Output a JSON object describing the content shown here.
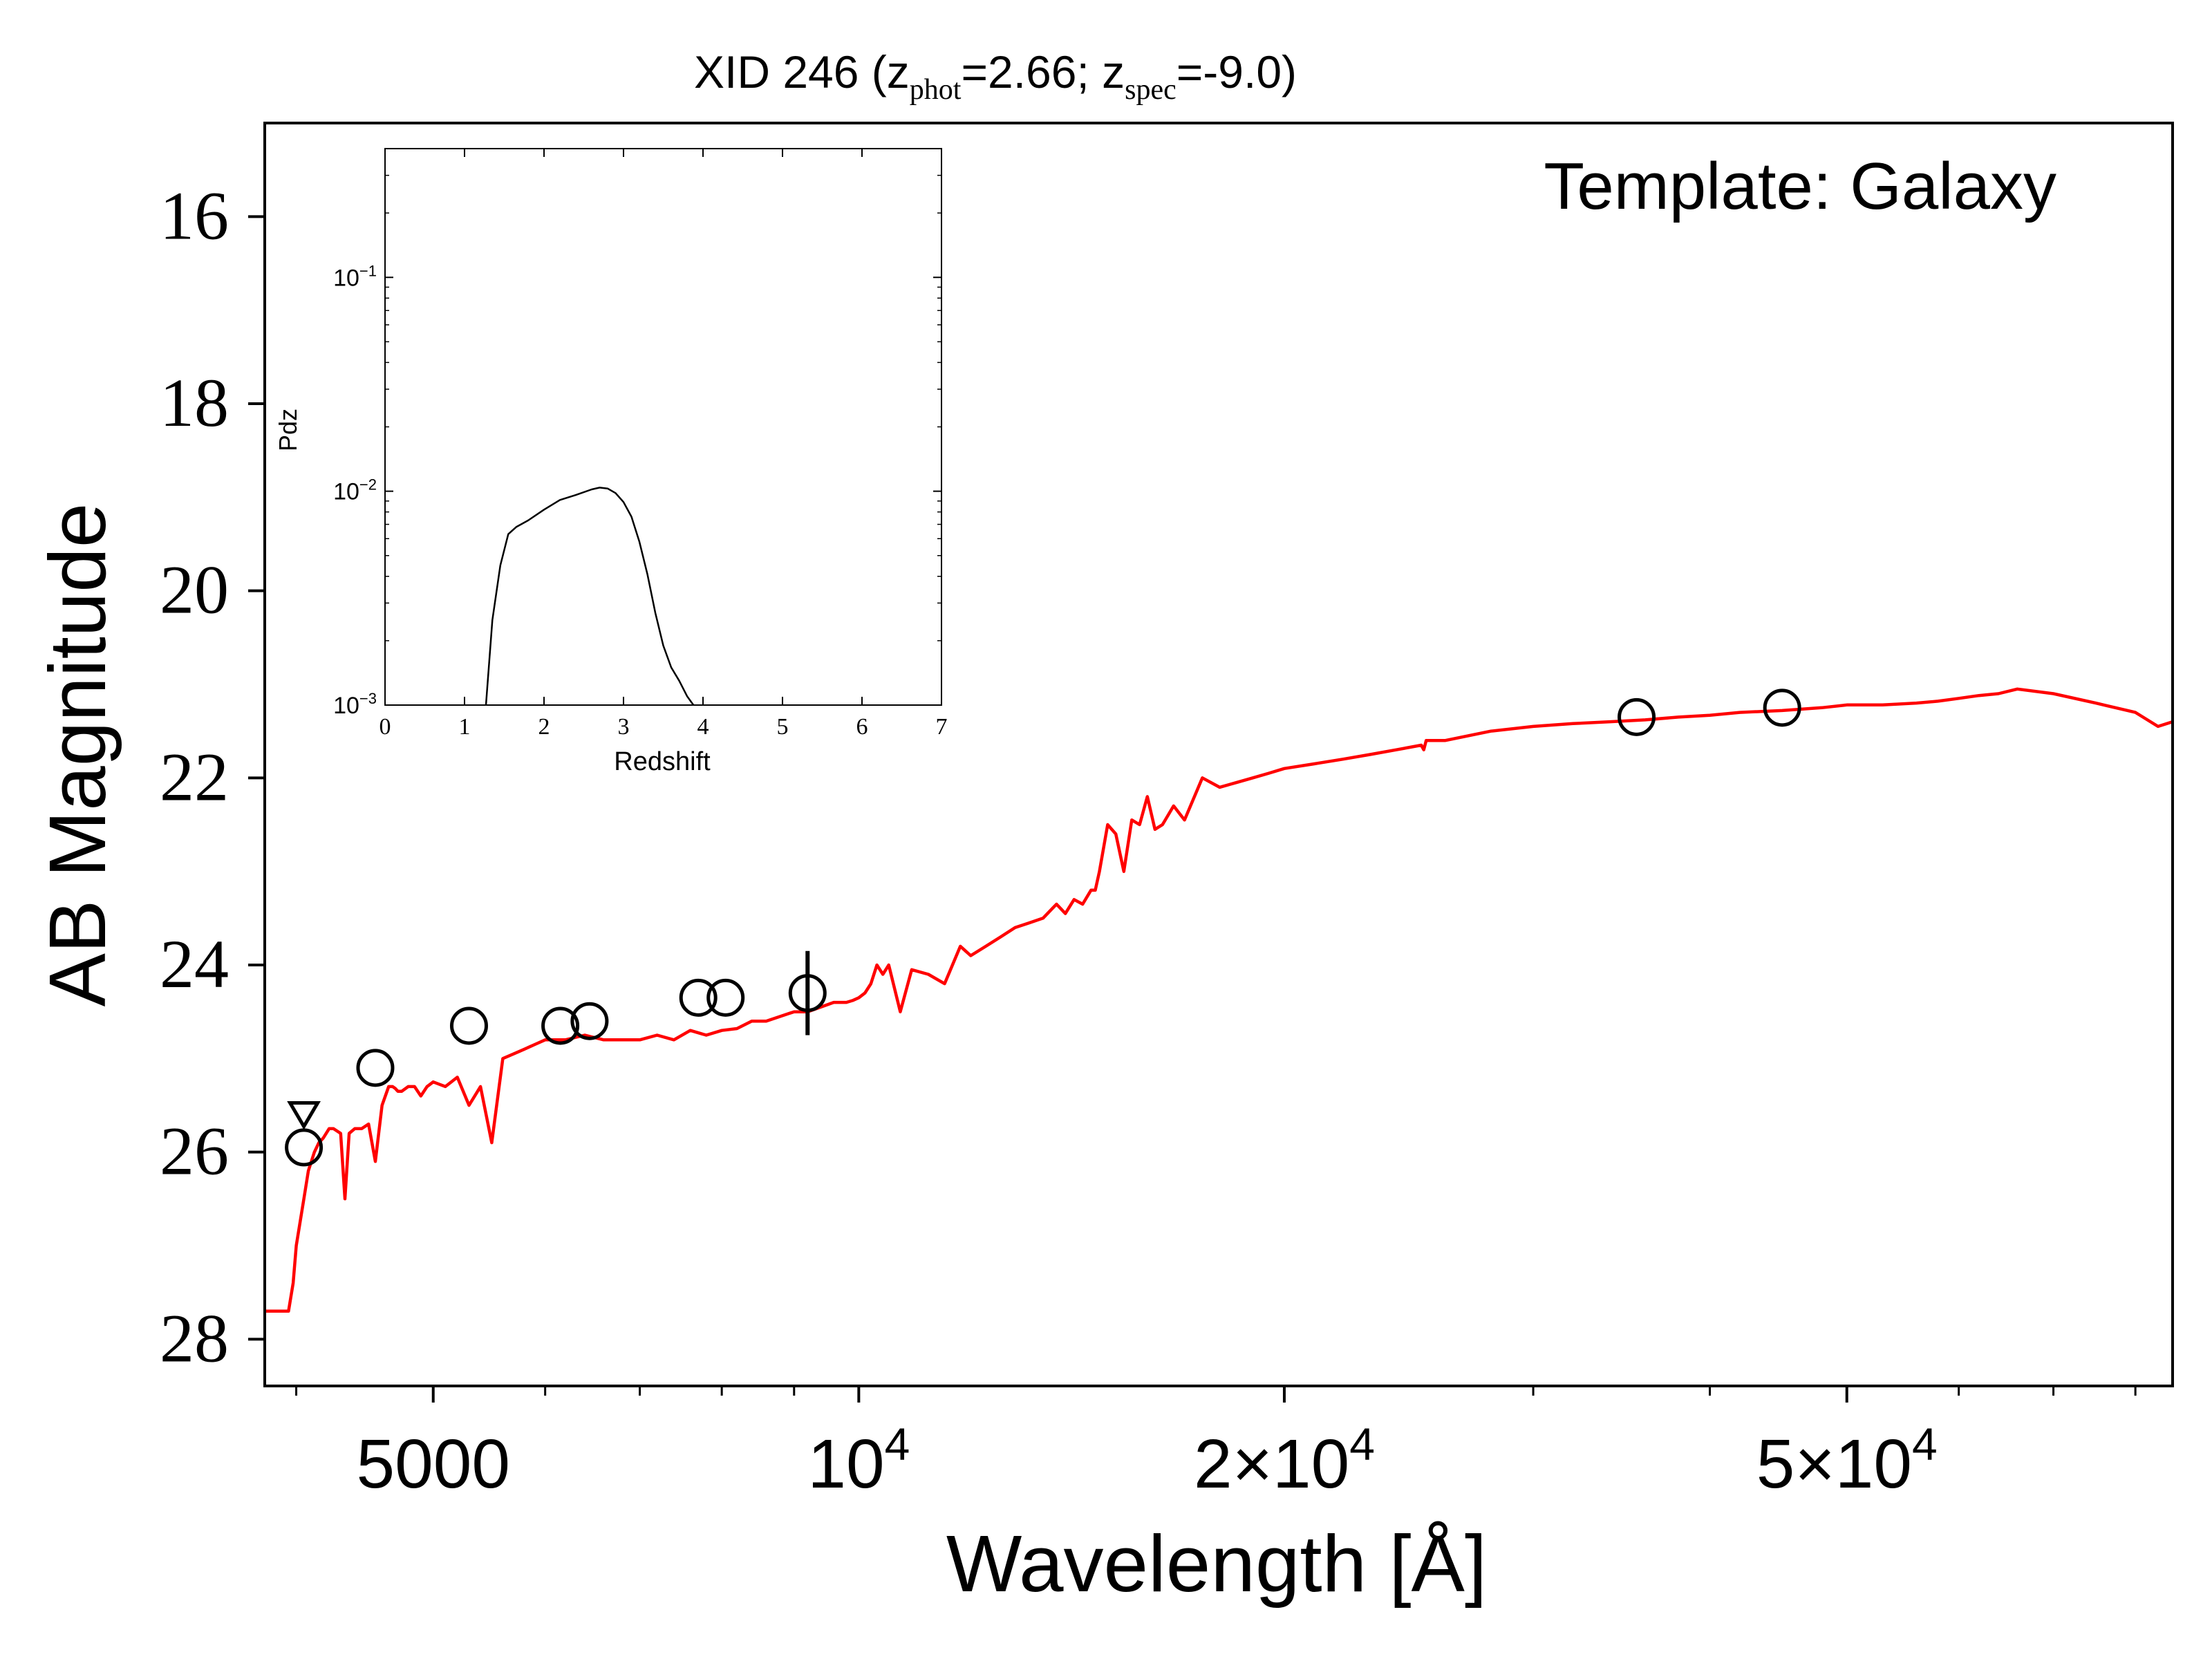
{
  "chart_data": [
    {
      "type": "line",
      "title": {
        "prefix": "XID 246 (z",
        "phot_sub": "phot",
        "phot_val": "=2.66; z",
        "spec_sub": "spec",
        "spec_val": "=-9.0)"
      },
      "annotation": "Template: Galaxy",
      "xlabel": "Wavelength [Å]",
      "ylabel": "AB Magnitude",
      "xscale": "log",
      "xlim": [
        3800,
        85000
      ],
      "ylim": [
        28.5,
        15.0
      ],
      "y_inverted": true,
      "xticks": [
        {
          "value": 5000,
          "label": "5000"
        },
        {
          "value": 10000,
          "label_base": "10",
          "label_exp": "4"
        },
        {
          "value": 20000,
          "label_base": "2×10",
          "label_exp": "4"
        },
        {
          "value": 50000,
          "label_base": "5×10",
          "label_exp": "4"
        }
      ],
      "yticks": [
        16,
        18,
        20,
        22,
        24,
        26,
        28
      ],
      "series": [
        {
          "role": "template",
          "color": "#ff0000",
          "x": [
            3800,
            3950,
            3980,
            4000,
            4020,
            4050,
            4080,
            4120,
            4150,
            4180,
            4200,
            4220,
            4250,
            4300,
            4330,
            4360,
            4400,
            4450,
            4500,
            4550,
            4600,
            4650,
            4680,
            4700,
            4720,
            4750,
            4800,
            4850,
            4900,
            4950,
            5000,
            5100,
            5200,
            5300,
            5400,
            5500,
            5600,
            5700,
            5800,
            5900,
            6000,
            6200,
            6400,
            6600,
            6800,
            7000,
            7200,
            7400,
            7600,
            7800,
            8000,
            8200,
            8400,
            8600,
            8800,
            9000,
            9200,
            9400,
            9600,
            9800,
            9900,
            10000,
            10100,
            10200,
            10300,
            10400,
            10500,
            10700,
            10900,
            11200,
            11500,
            11800,
            12000,
            12300,
            12600,
            12900,
            13200,
            13500,
            13800,
            14000,
            14200,
            14400,
            14600,
            14700,
            14800,
            15000,
            15200,
            15400,
            15600,
            15800,
            16000,
            16200,
            16400,
            16700,
            17000,
            17500,
            18000,
            18500,
            19000,
            19500,
            20000,
            21000,
            22000,
            23000,
            24000,
            25000,
            25100,
            25200,
            26000,
            28000,
            30000,
            32000,
            34000,
            36000,
            38000,
            40000,
            42000,
            45000,
            48000,
            50000,
            53000,
            56000,
            58000,
            60000,
            62000,
            64000,
            66000,
            70000,
            75000,
            80000,
            83000,
            85000
          ],
          "y": [
            27.7,
            27.7,
            27.4,
            27.0,
            26.8,
            26.5,
            26.2,
            26.0,
            25.9,
            25.85,
            25.8,
            25.75,
            25.75,
            25.8,
            26.5,
            25.8,
            25.75,
            25.75,
            25.7,
            26.1,
            25.5,
            25.3,
            25.3,
            25.32,
            25.35,
            25.35,
            25.3,
            25.3,
            25.4,
            25.3,
            25.25,
            25.3,
            25.2,
            25.5,
            25.3,
            25.9,
            25.0,
            24.95,
            24.9,
            24.85,
            24.8,
            24.8,
            24.75,
            24.8,
            24.8,
            24.8,
            24.75,
            24.8,
            24.7,
            24.75,
            24.7,
            24.68,
            24.6,
            24.6,
            24.55,
            24.5,
            24.5,
            24.45,
            24.4,
            24.4,
            24.38,
            24.35,
            24.3,
            24.2,
            24.0,
            24.1,
            24.0,
            24.5,
            24.05,
            24.1,
            24.2,
            23.8,
            23.9,
            23.8,
            23.7,
            23.6,
            23.55,
            23.5,
            23.35,
            23.45,
            23.3,
            23.35,
            23.2,
            23.2,
            23.0,
            22.5,
            22.6,
            23.0,
            22.45,
            22.5,
            22.2,
            22.55,
            22.5,
            22.3,
            22.45,
            22.0,
            22.1,
            22.05,
            22.0,
            21.95,
            21.9,
            21.85,
            21.8,
            21.75,
            21.7,
            21.65,
            21.7,
            21.6,
            21.6,
            21.5,
            21.45,
            21.42,
            21.4,
            21.38,
            21.35,
            21.33,
            21.3,
            21.28,
            21.25,
            21.22,
            21.22,
            21.2,
            21.18,
            21.15,
            21.12,
            21.1,
            21.05,
            21.1,
            21.2,
            21.3,
            21.45,
            21.4
          ]
        }
      ],
      "photometry": {
        "wavelength": [
          4050,
          4550,
          5300,
          6150,
          6450,
          7700,
          8050,
          9200,
          35500,
          45000
        ],
        "magnitude": [
          25.95,
          25.1,
          24.65,
          24.65,
          24.6,
          24.35,
          24.35,
          24.3,
          21.35,
          21.25
        ],
        "error": [
          0,
          0,
          0,
          0,
          0,
          0,
          0,
          0.45,
          0,
          0
        ]
      },
      "upper_limits": {
        "wavelength": [
          4050
        ],
        "magnitude": [
          25.6
        ]
      }
    },
    {
      "type": "line",
      "inset": true,
      "xlabel": "Redshift",
      "ylabel": "Pdz",
      "xlim": [
        0,
        7
      ],
      "yscale": "log",
      "ylim": [
        0.001,
        0.4
      ],
      "xticks": [
        0,
        1,
        2,
        3,
        4,
        5,
        6,
        7
      ],
      "yticks": [
        {
          "value": 0.001,
          "label_base": "10",
          "label_exp": "−3"
        },
        {
          "value": 0.01,
          "label_base": "10",
          "label_exp": "−2"
        },
        {
          "value": 0.1,
          "label_base": "10",
          "label_exp": "−1"
        }
      ],
      "series": [
        {
          "color": "#000000",
          "x": [
            1.27,
            1.35,
            1.45,
            1.55,
            1.65,
            1.8,
            2.0,
            2.2,
            2.4,
            2.6,
            2.7,
            2.8,
            2.9,
            3.0,
            3.1,
            3.2,
            3.3,
            3.4,
            3.5,
            3.6,
            3.7,
            3.8,
            3.88
          ],
          "y": [
            0.001,
            0.0025,
            0.0045,
            0.0063,
            0.0068,
            0.0073,
            0.0082,
            0.0091,
            0.0096,
            0.0102,
            0.0104,
            0.0103,
            0.0098,
            0.0089,
            0.0076,
            0.0058,
            0.0041,
            0.0027,
            0.0019,
            0.0015,
            0.0013,
            0.0011,
            0.001
          ]
        }
      ]
    }
  ]
}
